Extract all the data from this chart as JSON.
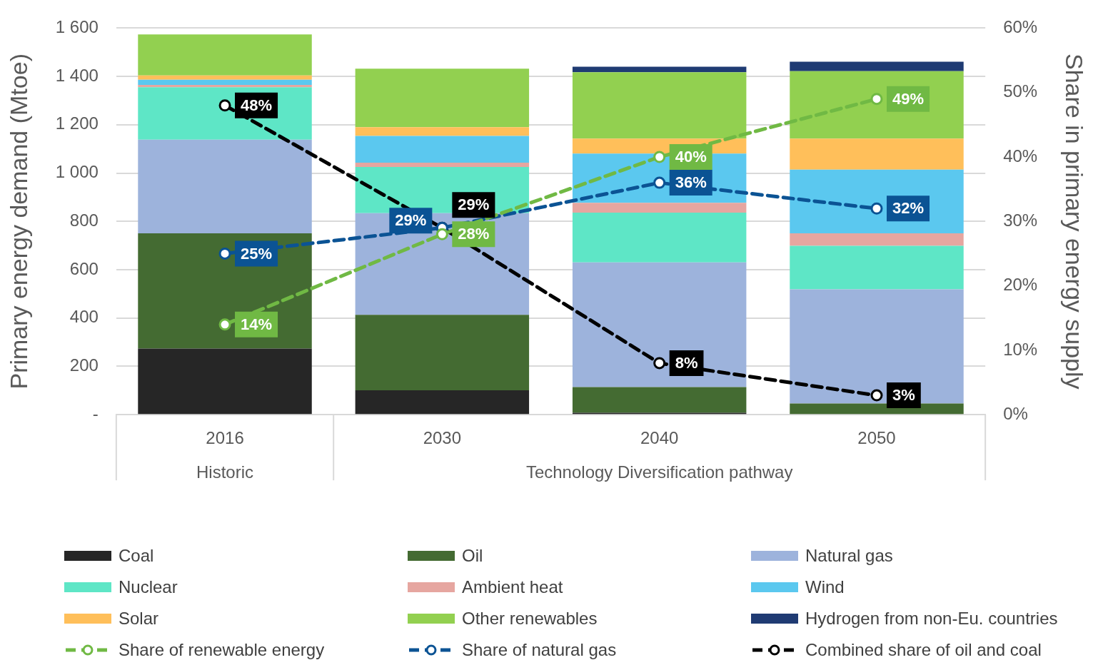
{
  "chart_data": {
    "type": "bar",
    "stacked": true,
    "categories": [
      "2016",
      "2030",
      "2040",
      "2050"
    ],
    "ylabel": "Primary energy demand (Mtoe)",
    "y2label": "Share in primary energy supply",
    "ylim": [
      0,
      1600
    ],
    "yticks": [
      {
        "value": 0,
        "label": "-"
      },
      200,
      400,
      600,
      800,
      {
        "value": 1000,
        "label": "1 000"
      },
      {
        "value": 1200,
        "label": "1 200"
      },
      {
        "value": 1400,
        "label": "1 400"
      },
      {
        "value": 1600,
        "label": "1 600"
      }
    ],
    "y2lim": [
      0,
      60
    ],
    "y2ticks": [
      {
        "value": 0,
        "label": "0%"
      },
      {
        "value": 10,
        "label": "10%"
      },
      {
        "value": 20,
        "label": "20%"
      },
      {
        "value": 30,
        "label": "30%"
      },
      {
        "value": 40,
        "label": "40%"
      },
      {
        "value": 50,
        "label": "50%"
      },
      {
        "value": 60,
        "label": "60%"
      }
    ],
    "grid": "y",
    "legend": "bottom",
    "annotations": [
      "Historic",
      "Technology Diversification pathway"
    ],
    "series": [
      {
        "name": "Coal",
        "color": "#262626",
        "values": [
          274,
          101,
          8,
          0
        ]
      },
      {
        "name": "Oil",
        "color": "#446b32",
        "values": [
          477,
          312,
          106,
          46
        ]
      },
      {
        "name": "Natural gas",
        "color": "#9db3dc",
        "values": [
          387,
          421,
          516,
          473
        ]
      },
      {
        "name": "Nuclear",
        "color": "#5ee6c6",
        "values": [
          217,
          191,
          206,
          180
        ]
      },
      {
        "name": "Ambient heat",
        "color": "#e6a6a0",
        "values": [
          10,
          18,
          41,
          52
        ]
      },
      {
        "name": "Wind",
        "color": "#5bc8ef",
        "values": [
          21,
          111,
          204,
          263
        ]
      },
      {
        "name": "Solar",
        "color": "#ffbf5a",
        "values": [
          18,
          36,
          62,
          129
        ]
      },
      {
        "name": "Other renewables",
        "color": "#92d050",
        "values": [
          170,
          242,
          274,
          279
        ]
      },
      {
        "name": "Hydrogen from non-Eu. countries",
        "color": "#1f3b73",
        "values": [
          0,
          0,
          23,
          39
        ]
      },
      {
        "name": "Share of renewable energy",
        "type": "line",
        "axis": "y2",
        "color": "#70b944",
        "line_style": "dashed",
        "marker": "circle",
        "values": [
          14,
          28,
          40,
          49
        ],
        "value_labels": [
          "14%",
          "28%",
          "40%",
          "49%"
        ]
      },
      {
        "name": "Share of natural gas",
        "type": "line",
        "axis": "y2",
        "color": "#0b5394",
        "line_style": "dashed",
        "marker": "circle",
        "values": [
          25,
          29,
          36,
          32
        ],
        "value_labels": [
          "25%",
          "29%",
          "36%",
          "32%"
        ]
      },
      {
        "name": "Combined share of oil and coal",
        "type": "line",
        "axis": "y2",
        "color": "#000000",
        "line_style": "dashed",
        "marker": "circle",
        "values": [
          48,
          29,
          8,
          3
        ],
        "value_labels": [
          "48%",
          "29%",
          "8%",
          "3%"
        ]
      }
    ]
  }
}
